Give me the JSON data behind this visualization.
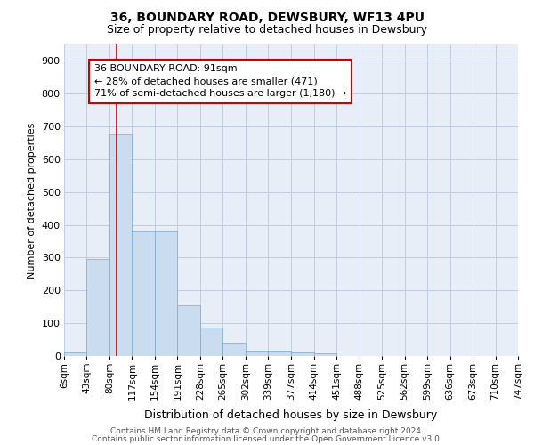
{
  "title": "36, BOUNDARY ROAD, DEWSBURY, WF13 4PU",
  "subtitle": "Size of property relative to detached houses in Dewsbury",
  "xlabel": "Distribution of detached houses by size in Dewsbury",
  "ylabel": "Number of detached properties",
  "bar_color": "#c9dcf0",
  "bar_edge_color": "#7aabcf",
  "background_color": "#ffffff",
  "plot_bg_color": "#e8eef8",
  "grid_color": "#c0cce0",
  "redline_color": "#cc0000",
  "redline_x": 91,
  "bin_edges": [
    6,
    43,
    80,
    117,
    154,
    191,
    228,
    265,
    302,
    339,
    377,
    414,
    451,
    488,
    525,
    562,
    599,
    636,
    673,
    710,
    747
  ],
  "bar_heights": [
    10,
    295,
    675,
    380,
    380,
    155,
    88,
    40,
    15,
    15,
    10,
    8,
    0,
    0,
    0,
    0,
    0,
    0,
    0,
    0
  ],
  "ylim": [
    0,
    950
  ],
  "yticks": [
    0,
    100,
    200,
    300,
    400,
    500,
    600,
    700,
    800,
    900
  ],
  "annotation_title": "36 BOUNDARY ROAD: 91sqm",
  "annotation_line1": "← 28% of detached houses are smaller (471)",
  "annotation_line2": "71% of semi-detached houses are larger (1,180) →",
  "annotation_box_facecolor": "#ffffff",
  "annotation_box_edgecolor": "#cc0000",
  "footer_line1": "Contains HM Land Registry data © Crown copyright and database right 2024.",
  "footer_line2": "Contains public sector information licensed under the Open Government Licence v3.0.",
  "title_fontsize": 10,
  "subtitle_fontsize": 9,
  "ylabel_fontsize": 8,
  "xlabel_fontsize": 9,
  "ytick_fontsize": 8,
  "xtick_fontsize": 7.5,
  "footer_fontsize": 6.5,
  "annot_fontsize": 8
}
